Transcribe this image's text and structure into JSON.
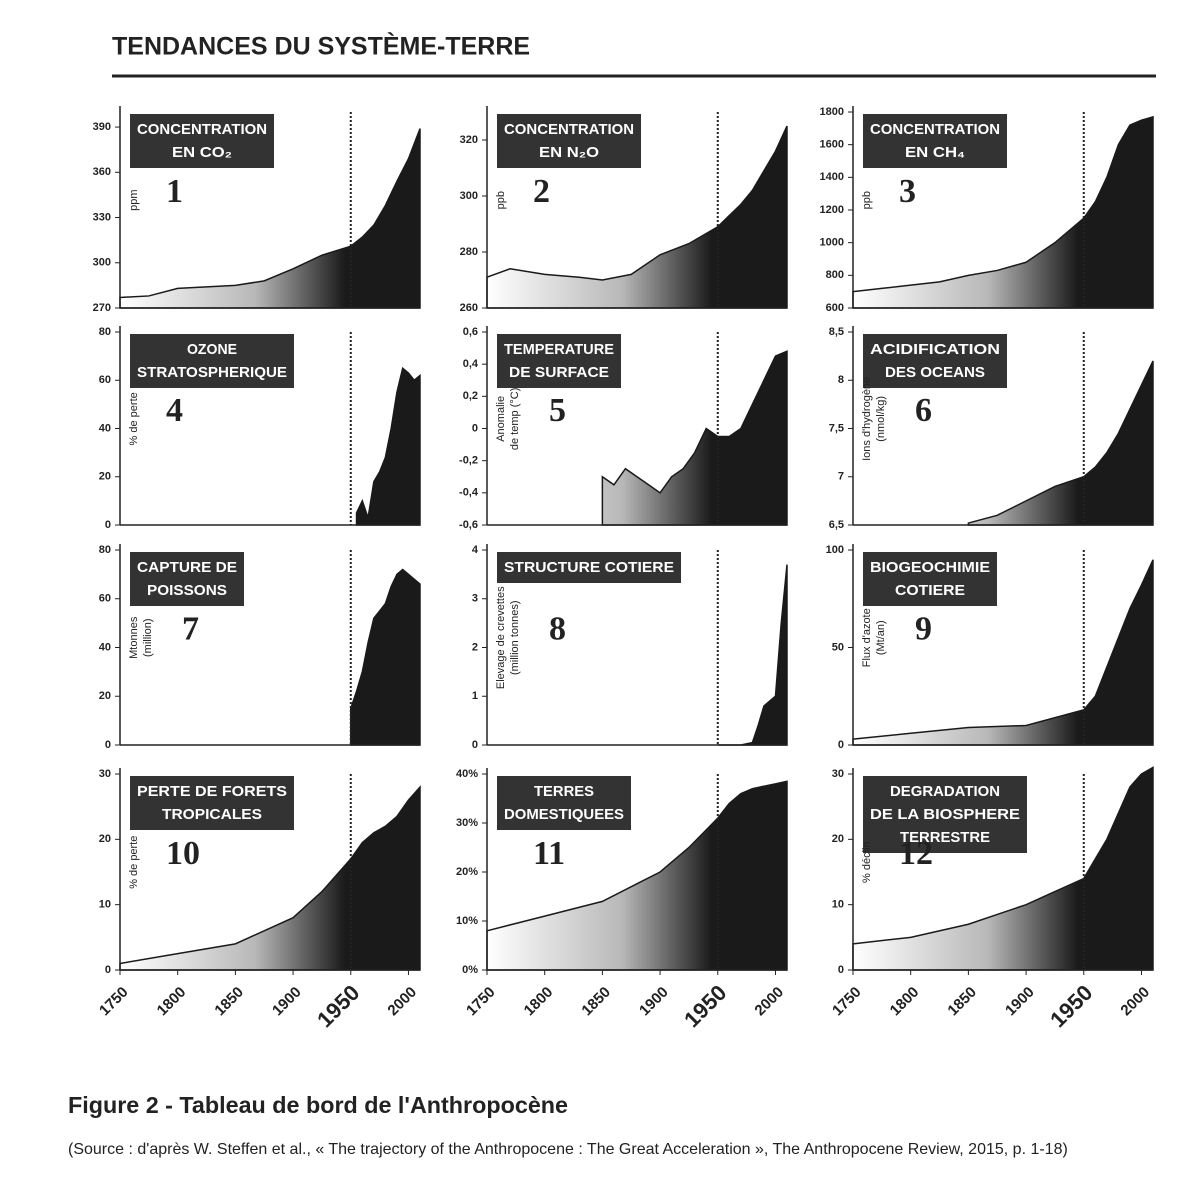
{
  "header": {
    "title": "TENDANCES DU SYSTÈME-TERRE"
  },
  "chart_data": [
    {
      "type": "area",
      "title": [
        "CONCENTRATION",
        "EN CO₂"
      ],
      "ylabel": [
        "ppm"
      ],
      "annotation": "1",
      "color": "#1a1a1a",
      "x": [
        1750,
        1775,
        1800,
        1825,
        1850,
        1875,
        1900,
        1925,
        1950,
        1960,
        1970,
        1980,
        1990,
        2000,
        2010
      ],
      "values": [
        277,
        278,
        283,
        284,
        285,
        288,
        296,
        305,
        311,
        317,
        325,
        338,
        354,
        369,
        389
      ],
      "xlim": [
        1750,
        2010
      ],
      "ylim": [
        270,
        400
      ],
      "yticks": [
        270,
        300,
        330,
        360,
        390
      ],
      "vline": 1950
    },
    {
      "type": "area",
      "title": [
        "CONCENTRATION",
        "EN N₂O"
      ],
      "ylabel": [
        "ppb"
      ],
      "annotation": "2",
      "color": "#1a1a1a",
      "x": [
        1750,
        1770,
        1800,
        1830,
        1850,
        1875,
        1900,
        1925,
        1950,
        1960,
        1970,
        1980,
        1990,
        2000,
        2010
      ],
      "values": [
        271,
        274,
        272,
        271,
        270,
        272,
        279,
        283,
        289,
        293,
        297,
        302,
        309,
        316,
        325
      ],
      "xlim": [
        1750,
        2010
      ],
      "ylim": [
        260,
        330
      ],
      "yticks": [
        260,
        280,
        300,
        320
      ],
      "vline": 1950
    },
    {
      "type": "area",
      "title": [
        "CONCENTRATION",
        "EN CH₄"
      ],
      "ylabel": [
        "ppb"
      ],
      "annotation": "3",
      "color": "#1a1a1a",
      "x": [
        1750,
        1775,
        1800,
        1825,
        1850,
        1875,
        1900,
        1925,
        1950,
        1960,
        1970,
        1980,
        1990,
        2000,
        2010
      ],
      "values": [
        700,
        720,
        740,
        760,
        800,
        830,
        880,
        1000,
        1150,
        1250,
        1400,
        1600,
        1720,
        1750,
        1770
      ],
      "xlim": [
        1750,
        2010
      ],
      "ylim": [
        600,
        1800
      ],
      "yticks": [
        600,
        800,
        1000,
        1200,
        1400,
        1600,
        1800
      ],
      "vline": 1950
    },
    {
      "type": "area",
      "title": [
        "OZONE",
        "STRATOSPHERIQUE"
      ],
      "ylabel": [
        "% de perte"
      ],
      "annotation": "4",
      "color": "#1a1a1a",
      "x": [
        1955,
        1960,
        1965,
        1970,
        1975,
        1980,
        1985,
        1990,
        1995,
        2000,
        2005,
        2010
      ],
      "values": [
        5,
        10,
        3,
        18,
        22,
        28,
        40,
        55,
        65,
        63,
        60,
        62
      ],
      "xlim": [
        1750,
        2010
      ],
      "ylim": [
        0,
        80
      ],
      "yticks": [
        0,
        20,
        40,
        60,
        80
      ],
      "vline": 1950
    },
    {
      "type": "area",
      "title": [
        "TEMPERATURE",
        "DE SURFACE"
      ],
      "ylabel": [
        "Anomalie",
        "de temp (°C)"
      ],
      "annotation": "5",
      "color": "#1a1a1a",
      "x": [
        1850,
        1860,
        1870,
        1880,
        1890,
        1900,
        1910,
        1920,
        1930,
        1940,
        1950,
        1960,
        1970,
        1980,
        1990,
        2000,
        2010
      ],
      "values": [
        -0.3,
        -0.35,
        -0.25,
        -0.3,
        -0.35,
        -0.4,
        -0.3,
        -0.25,
        -0.15,
        0,
        -0.05,
        -0.05,
        0,
        0.15,
        0.3,
        0.45,
        0.48
      ],
      "xlim": [
        1750,
        2010
      ],
      "ylim": [
        -0.6,
        0.6
      ],
      "yticks": [
        {
          "value": -0.6,
          "label": "-0,6"
        },
        {
          "value": -0.4,
          "label": "-0,4"
        },
        {
          "value": -0.2,
          "label": "-0,2"
        },
        0,
        {
          "value": 0.2,
          "label": "0,2"
        },
        {
          "value": 0.4,
          "label": "0,4"
        },
        {
          "value": 0.6,
          "label": "0,6"
        }
      ],
      "vline": 1950
    },
    {
      "type": "area",
      "title": [
        "ACIDIFICATION",
        "DES OCEANS"
      ],
      "ylabel": [
        "Ions d'hydrogène",
        "(nmol/kg)"
      ],
      "annotation": "6",
      "color": "#1a1a1a",
      "x": [
        1850,
        1875,
        1900,
        1925,
        1950,
        1960,
        1970,
        1980,
        1990,
        2000,
        2010
      ],
      "values": [
        6.52,
        6.6,
        6.75,
        6.9,
        7.0,
        7.1,
        7.25,
        7.45,
        7.7,
        7.95,
        8.2
      ],
      "xlim": [
        1750,
        2010
      ],
      "ylim": [
        6.5,
        8.5
      ],
      "yticks": [
        {
          "value": 6.5,
          "label": "6,5"
        },
        7,
        {
          "value": 7.5,
          "label": "7,5"
        },
        8,
        {
          "value": 8.5,
          "label": "8,5"
        }
      ],
      "vline": 1950
    },
    {
      "type": "area",
      "title": [
        "CAPTURE DE",
        "POISSONS"
      ],
      "ylabel": [
        "Mtonnes",
        "(million)"
      ],
      "annotation": "7",
      "color": "#1a1a1a",
      "x": [
        1950,
        1955,
        1960,
        1965,
        1970,
        1975,
        1980,
        1985,
        1990,
        1995,
        2000,
        2005,
        2010
      ],
      "values": [
        15,
        22,
        30,
        42,
        52,
        55,
        58,
        65,
        70,
        72,
        70,
        68,
        66
      ],
      "xlim": [
        1750,
        2010
      ],
      "ylim": [
        0,
        80
      ],
      "yticks": [
        0,
        20,
        40,
        60,
        80
      ],
      "vline": 1950
    },
    {
      "type": "area",
      "title": [
        "STRUCTURE COTIERE"
      ],
      "ylabel": [
        "Elevage de crevettes",
        "(million tonnes)"
      ],
      "annotation": "8",
      "color": "#1a1a1a",
      "x": [
        1950,
        1970,
        1980,
        1985,
        1990,
        1995,
        2000,
        2005,
        2010
      ],
      "values": [
        0,
        0,
        0.05,
        0.4,
        0.8,
        0.9,
        1.0,
        2.5,
        3.7
      ],
      "xlim": [
        1750,
        2010
      ],
      "ylim": [
        0,
        4
      ],
      "yticks": [
        0,
        1,
        2,
        3,
        4
      ],
      "vline": 1950
    },
    {
      "type": "area",
      "title": [
        "BIOGEOCHIMIE",
        "COTIERE"
      ],
      "ylabel": [
        "Flux d'azote",
        "(Mt/an)"
      ],
      "annotation": "9",
      "color": "#1a1a1a",
      "x": [
        1750,
        1800,
        1850,
        1900,
        1950,
        1960,
        1970,
        1980,
        1990,
        2000,
        2010
      ],
      "values": [
        3,
        6,
        9,
        10,
        18,
        25,
        40,
        55,
        70,
        82,
        95
      ],
      "xlim": [
        1750,
        2010
      ],
      "ylim": [
        0,
        100
      ],
      "yticks": [
        0,
        50,
        100
      ],
      "vline": 1950
    },
    {
      "type": "area",
      "title": [
        "PERTE DE FORETS",
        "TROPICALES"
      ],
      "ylabel": [
        "% de perte"
      ],
      "annotation": "10",
      "color": "#1a1a1a",
      "x": [
        1750,
        1800,
        1850,
        1900,
        1925,
        1950,
        1960,
        1970,
        1980,
        1990,
        2000,
        2010
      ],
      "values": [
        1,
        2.5,
        4,
        8,
        12,
        17,
        19.5,
        21,
        22,
        23.5,
        26,
        28
      ],
      "xlim": [
        1750,
        2010
      ],
      "ylim": [
        0,
        30
      ],
      "yticks": [
        0,
        10,
        20,
        30
      ],
      "xticks": [
        1750,
        1800,
        1850,
        1900,
        1950,
        2000
      ],
      "vline": 1950
    },
    {
      "type": "area",
      "title": [
        "TERRES",
        "DOMESTIQUEES"
      ],
      "ylabel": [],
      "annotation": "11",
      "color": "#1a1a1a",
      "x": [
        1750,
        1800,
        1850,
        1900,
        1925,
        1950,
        1960,
        1970,
        1980,
        1990,
        2000,
        2010
      ],
      "values": [
        8,
        11,
        14,
        20,
        25,
        31,
        34,
        36,
        37,
        37.5,
        38,
        38.5
      ],
      "xlim": [
        1750,
        2010
      ],
      "ylim": [
        0,
        40
      ],
      "yticks": [
        {
          "value": 0,
          "label": "0%"
        },
        {
          "value": 10,
          "label": "10%"
        },
        {
          "value": 20,
          "label": "20%"
        },
        {
          "value": 30,
          "label": "30%"
        },
        {
          "value": 40,
          "label": "40%"
        }
      ],
      "xticks": [
        1750,
        1800,
        1850,
        1900,
        1950,
        2000
      ],
      "vline": 1950
    },
    {
      "type": "area",
      "title": [
        "DEGRADATION",
        "DE LA BIOSPHERE",
        "TERRESTRE"
      ],
      "ylabel": [
        "% déclin"
      ],
      "annotation": "12",
      "color": "#1a1a1a",
      "x": [
        1750,
        1800,
        1850,
        1900,
        1925,
        1950,
        1960,
        1970,
        1980,
        1990,
        2000,
        2010
      ],
      "values": [
        4,
        5,
        7,
        10,
        12,
        14,
        17,
        20,
        24,
        28,
        30,
        31
      ],
      "xlim": [
        1750,
        2010
      ],
      "ylim": [
        0,
        30
      ],
      "yticks": [
        0,
        10,
        20,
        30
      ],
      "xticks": [
        1750,
        1800,
        1850,
        1900,
        1950,
        2000
      ],
      "vline": 1950
    }
  ],
  "caption": {
    "title": "Figure 2 - Tableau de bord de l'Anthropocène",
    "source": "(Source : d'après W. Steffen et al., « The trajectory of the Anthropocene : The Great Acceleration », The Anthropocene Review, 2015, p. 1-18)"
  }
}
